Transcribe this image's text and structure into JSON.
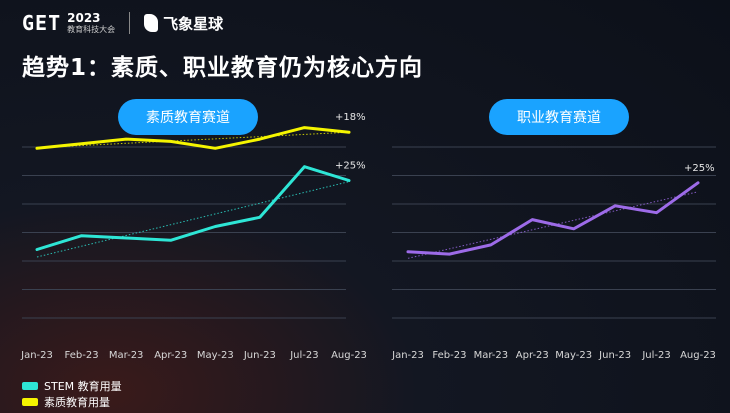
{
  "header": {
    "logo": "GET",
    "year": "2023",
    "event": "教育科技大会",
    "brand": "飞象星球"
  },
  "title": "趋势1：素质、职业教育仍为核心方向",
  "pills": {
    "left": "素质教育赛道",
    "right": "职业教育赛道"
  },
  "colors": {
    "stem": "#2ee6d6",
    "quality": "#f5f500",
    "vocational": "#9d6be8",
    "pill": "#1aa3ff"
  },
  "legend": [
    {
      "label": "STEM 教育用量",
      "color": "#2ee6d6"
    },
    {
      "label": "素质教育用量",
      "color": "#f5f500"
    }
  ],
  "chart_data": [
    {
      "type": "line",
      "categories": [
        "Jan-23",
        "Feb-23",
        "Mar-23",
        "Apr-23",
        "May-23",
        "Jun-23",
        "Jul-23",
        "Aug-23"
      ],
      "series": [
        {
          "name": "素质教育用量",
          "values": [
            79,
            81,
            83,
            82,
            79,
            83,
            88,
            86
          ],
          "annotation": "+18%"
        },
        {
          "name": "STEM 教育用量",
          "values": [
            35,
            41,
            40,
            39,
            45,
            49,
            71,
            65
          ],
          "annotation": "+25%"
        }
      ],
      "trendlines": true,
      "ylim": [
        0,
        100
      ],
      "grid": true,
      "legend_position": "bottom-left"
    },
    {
      "type": "line",
      "categories": [
        "Jan-23",
        "Feb-23",
        "Mar-23",
        "Apr-23",
        "May-23",
        "Jun-23",
        "Jul-23",
        "Aug-23"
      ],
      "series": [
        {
          "values": [
            34,
            33,
            37,
            48,
            44,
            54,
            51,
            64
          ],
          "annotation": "+25%"
        }
      ],
      "trendlines": true,
      "ylim": [
        0,
        100
      ],
      "grid": true
    }
  ]
}
